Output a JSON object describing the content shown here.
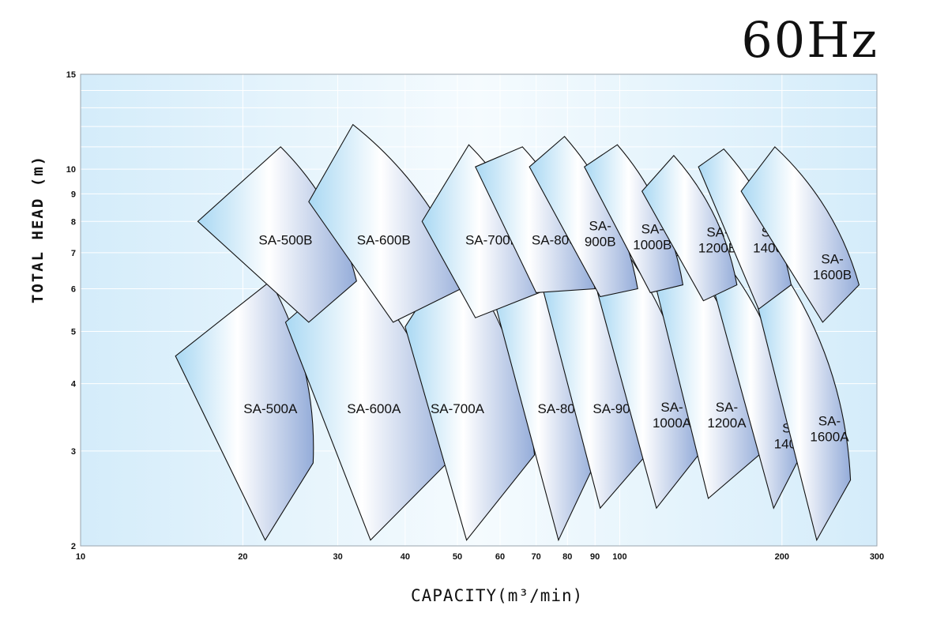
{
  "frequency_label": "60Hz",
  "chart_data": {
    "type": "area",
    "title": "",
    "xlabel": "CAPACITY(m³/min)",
    "ylabel": "TOTAL HEAD (m)",
    "xscale": "log",
    "yscale": "log",
    "xlim": [
      10,
      300
    ],
    "ylim": [
      2,
      15
    ],
    "xticks": [
      10,
      20,
      30,
      40,
      50,
      60,
      70,
      80,
      90,
      100,
      200,
      300
    ],
    "yticks": [
      2,
      3,
      4,
      5,
      6,
      7,
      8,
      9,
      10,
      15
    ],
    "grid": true,
    "series": [
      {
        "name": "SA-500A",
        "label_lines": [
          "SA-500A"
        ],
        "color": "#a9d8f3",
        "region": [
          [
            15,
            4.5
          ],
          [
            22.5,
            6.2
          ],
          [
            27,
            2.85
          ],
          [
            22,
            2.05
          ]
        ],
        "label_at": [
          22.5,
          3.6
        ]
      },
      {
        "name": "SA-600A",
        "label_lines": [
          "SA-600A"
        ],
        "color": "#a9d8f3",
        "region": [
          [
            24,
            5.2
          ],
          [
            32,
            6.7
          ],
          [
            49.5,
            2.95
          ],
          [
            34.5,
            2.05
          ]
        ],
        "label_at": [
          35,
          3.6
        ]
      },
      {
        "name": "SA-700A",
        "label_lines": [
          "SA-700A"
        ],
        "color": "#a9d8f3",
        "region": [
          [
            40,
            5.1
          ],
          [
            49.5,
            7.1
          ],
          [
            69.5,
            2.95
          ],
          [
            52,
            2.05
          ]
        ],
        "label_at": [
          50,
          3.6
        ]
      },
      {
        "name": "SA-800A",
        "label_lines": [
          "SA-800A"
        ],
        "color": "#a9d8f3",
        "region": [
          [
            58,
            5.9
          ],
          [
            67,
            7.1
          ],
          [
            90,
            2.85
          ],
          [
            77,
            2.05
          ]
        ],
        "label_at": [
          79,
          3.6
        ]
      },
      {
        "name": "SA-900A",
        "label_lines": [
          "SA-900A"
        ],
        "color": "#a9d8f3",
        "region": [
          [
            72,
            6.0
          ],
          [
            82,
            7.3
          ],
          [
            112,
            2.95
          ],
          [
            92,
            2.35
          ]
        ],
        "label_at": [
          100,
          3.6
        ]
      },
      {
        "name": "SA-1000A",
        "label_lines": [
          "SA-",
          "1000A"
        ],
        "color": "#a9d8f3",
        "region": [
          [
            91,
            5.9
          ],
          [
            102,
            7.1
          ],
          [
            140,
            2.95
          ],
          [
            117,
            2.35
          ]
        ],
        "label_at": [
          125,
          3.5
        ]
      },
      {
        "name": "SA-1200A",
        "label_lines": [
          "SA-",
          "1200A"
        ],
        "color": "#a9d8f3",
        "region": [
          [
            116,
            6.2
          ],
          [
            131,
            7.1
          ],
          [
            185,
            3.0
          ],
          [
            146,
            2.45
          ]
        ],
        "label_at": [
          158,
          3.5
        ]
      },
      {
        "name": "SA-1400A",
        "label_lines": [
          "SA-",
          "1400A"
        ],
        "color": "#a9d8f3",
        "region": [
          [
            148,
            6.2
          ],
          [
            163,
            6.4
          ],
          [
            215,
            2.9
          ],
          [
            193,
            2.35
          ]
        ],
        "label_at": [
          210,
          3.2
        ]
      },
      {
        "name": "SA-1600A",
        "label_lines": [
          "SA-",
          "1600A"
        ],
        "color": "#a9d8f3",
        "region": [
          [
            180,
            5.6
          ],
          [
            198,
            6.6
          ],
          [
            268,
            2.65
          ],
          [
            232,
            2.05
          ]
        ],
        "label_at": [
          245,
          3.3
        ]
      },
      {
        "name": "SA-500B",
        "label_lines": [
          "SA-500B"
        ],
        "color": "#a9d8f3",
        "region": [
          [
            16.5,
            8.0
          ],
          [
            23.5,
            11.0
          ],
          [
            32.5,
            6.2
          ],
          [
            26.5,
            5.2
          ]
        ],
        "label_at": [
          24,
          7.4
        ]
      },
      {
        "name": "SA-600B",
        "label_lines": [
          "SA-600B"
        ],
        "color": "#a9d8f3",
        "region": [
          [
            26.5,
            8.7
          ],
          [
            32,
            12.1
          ],
          [
            52.5,
            6.1
          ],
          [
            38,
            5.2
          ]
        ],
        "label_at": [
          36.5,
          7.4
        ]
      },
      {
        "name": "SA-700B",
        "label_lines": [
          "SA-700B"
        ],
        "color": "#a9d8f3",
        "region": [
          [
            43,
            8.0
          ],
          [
            52.5,
            11.1
          ],
          [
            74,
            6.0
          ],
          [
            54,
            5.3
          ]
        ],
        "label_at": [
          58,
          7.4
        ]
      },
      {
        "name": "SA-800B",
        "label_lines": [
          "SA-800B"
        ],
        "color": "#a9d8f3",
        "region": [
          [
            54,
            10.1
          ],
          [
            66,
            11.0
          ],
          [
            90,
            6.0
          ],
          [
            70,
            5.9
          ]
        ],
        "label_at": [
          77,
          7.4
        ]
      },
      {
        "name": "SA-900B",
        "label_lines": [
          "SA-",
          "900B"
        ],
        "color": "#a9d8f3",
        "region": [
          [
            68,
            10.1
          ],
          [
            79,
            11.5
          ],
          [
            108,
            6.0
          ],
          [
            92,
            5.8
          ]
        ],
        "label_at": [
          92,
          7.6
        ]
      },
      {
        "name": "SA-1000B",
        "label_lines": [
          "SA-",
          "1000B"
        ],
        "color": "#a9d8f3",
        "region": [
          [
            86,
            10.1
          ],
          [
            99,
            11.1
          ],
          [
            131,
            6.1
          ],
          [
            114,
            5.9
          ]
        ],
        "label_at": [
          115,
          7.5
        ]
      },
      {
        "name": "SA-1200B",
        "label_lines": [
          "SA-",
          "1200B"
        ],
        "color": "#a9d8f3",
        "region": [
          [
            110,
            9.1
          ],
          [
            126,
            10.6
          ],
          [
            165,
            6.1
          ],
          [
            143,
            5.7
          ]
        ],
        "label_at": [
          152,
          7.4
        ]
      },
      {
        "name": "SA-1400B",
        "label_lines": [
          "SA-",
          "1400B"
        ],
        "color": "#a9d8f3",
        "region": [
          [
            140,
            10.1
          ],
          [
            156,
            10.9
          ],
          [
            208,
            6.1
          ],
          [
            181,
            5.5
          ]
        ],
        "label_at": [
          192,
          7.4
        ]
      },
      {
        "name": "SA-1600B",
        "label_lines": [
          "SA-",
          "1600B"
        ],
        "color": "#a9d8f3",
        "region": [
          [
            168,
            9.1
          ],
          [
            194,
            11.0
          ],
          [
            278,
            6.1
          ],
          [
            238,
            5.2
          ]
        ],
        "label_at": [
          248,
          6.6
        ]
      }
    ]
  }
}
